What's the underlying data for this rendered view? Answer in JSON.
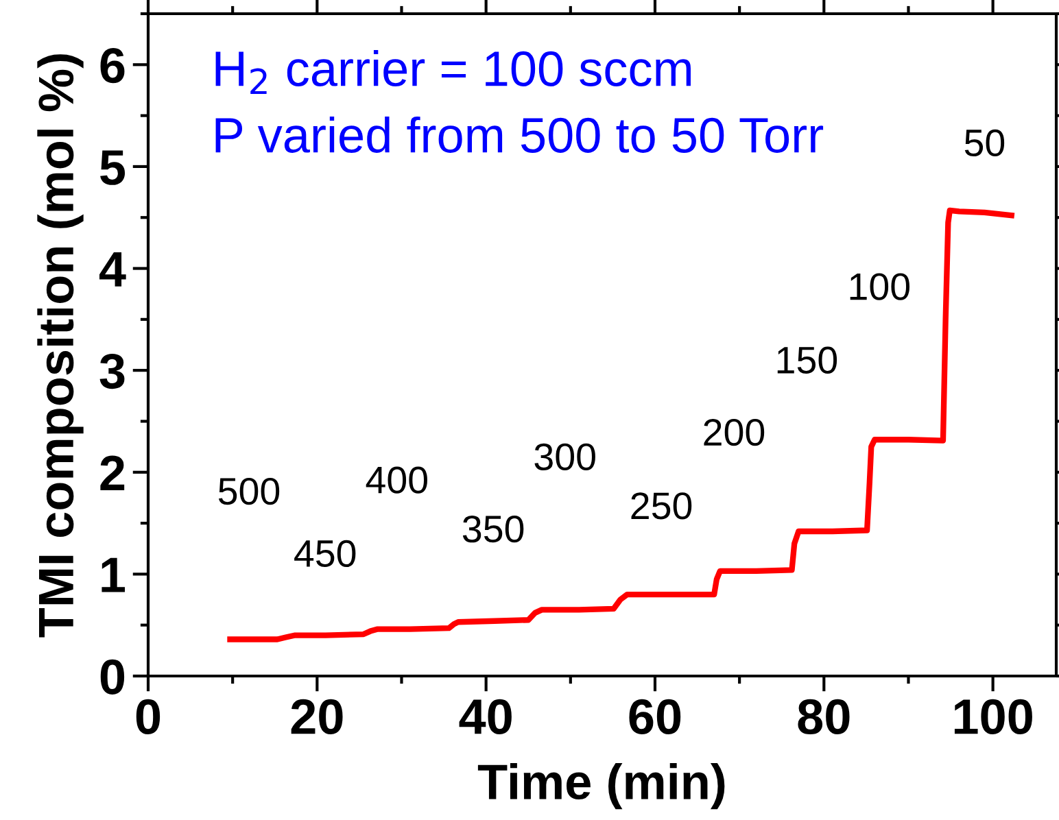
{
  "chart_data": {
    "type": "line",
    "xlabel": "Time (min)",
    "ylabel": "TMI composition (mol %)",
    "xlim": [
      0,
      107.5
    ],
    "ylim": [
      0,
      6.5
    ],
    "xticks": [
      0,
      20,
      40,
      60,
      80,
      100
    ],
    "yticks": [
      0,
      1,
      2,
      3,
      4,
      5,
      6
    ],
    "grid": false,
    "marker": "none",
    "line_style": "solid",
    "series": [
      {
        "color": "#ff0000",
        "x": [
          9.7,
          12.0,
          15.3,
          16.3,
          17.4,
          21.0,
          25.5,
          26.3,
          27.1,
          31.0,
          35.6,
          36.2,
          36.7,
          41.0,
          45.0,
          45.8,
          46.6,
          51.0,
          55.1,
          55.9,
          56.7,
          62.0,
          67.0,
          67.3,
          67.7,
          72.0,
          76.2,
          76.5,
          77.0,
          81.0,
          85.1,
          85.4,
          85.6,
          86.0,
          90.0,
          94.1,
          94.4,
          94.7,
          94.9,
          96.0,
          99.0,
          102.2
        ],
        "values": [
          0.36,
          0.36,
          0.36,
          0.38,
          0.4,
          0.4,
          0.41,
          0.44,
          0.46,
          0.46,
          0.47,
          0.51,
          0.53,
          0.54,
          0.55,
          0.62,
          0.65,
          0.65,
          0.66,
          0.75,
          0.8,
          0.8,
          0.8,
          0.95,
          1.03,
          1.03,
          1.04,
          1.3,
          1.42,
          1.42,
          1.43,
          1.9,
          2.25,
          2.32,
          2.32,
          2.31,
          3.5,
          4.45,
          4.57,
          4.56,
          4.55,
          4.52
        ]
      }
    ],
    "annotations": [
      "H$_{2}$ carrier = 100 sccm",
      "P varied from 500 to 50 Torr",
      "500",
      "450",
      "400",
      "350",
      "300",
      "250",
      "200",
      "150",
      "100",
      "50"
    ]
  }
}
